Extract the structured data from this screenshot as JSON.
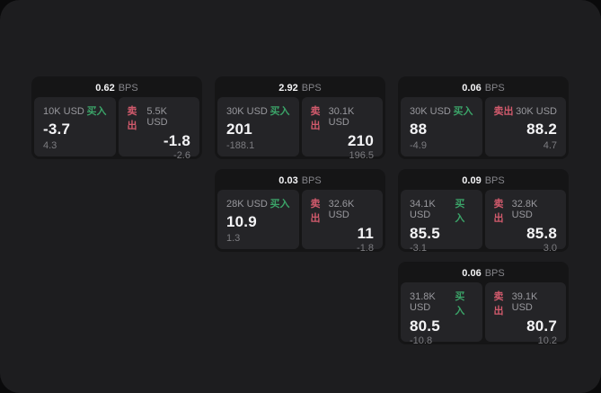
{
  "colors": {
    "page_bg": "#0a0a0b",
    "panel_bg": "#1d1d1f",
    "card_bg": "#151516",
    "tile_bg": "#242427",
    "value_white": "#f4f4f6",
    "label_gray": "#98989d",
    "delta_gray": "#7c7c80",
    "bps_gray": "#85858a",
    "buy_green": "#3ba368",
    "sell_red": "#d15a6c"
  },
  "labels": {
    "bps": "BPS",
    "buy": "买入",
    "sell": "卖出"
  },
  "cards": [
    {
      "bps": "0.62",
      "buy": {
        "amount": "10K USD",
        "value": "-3.7",
        "delta": "4.3"
      },
      "sell": {
        "amount": "5.5K USD",
        "value": "-1.8",
        "delta": "-2.6"
      }
    },
    {
      "bps": "2.92",
      "buy": {
        "amount": "30K USD",
        "value": "201",
        "delta": "-188.1"
      },
      "sell": {
        "amount": "30.1K USD",
        "value": "210",
        "delta": "196.5"
      }
    },
    {
      "bps": "0.06",
      "buy": {
        "amount": "30K USD",
        "value": "88",
        "delta": "-4.9"
      },
      "sell": {
        "amount": "30K USD",
        "value": "88.2",
        "delta": "4.7"
      }
    },
    {
      "bps": "0.03",
      "buy": {
        "amount": "28K USD",
        "value": "10.9",
        "delta": "1.3"
      },
      "sell": {
        "amount": "32.6K USD",
        "value": "11",
        "delta": "-1.8"
      }
    },
    {
      "bps": "0.09",
      "buy": {
        "amount": "34.1K USD",
        "value": "85.5",
        "delta": "-3.1"
      },
      "sell": {
        "amount": "32.8K USD",
        "value": "85.8",
        "delta": "3.0"
      }
    },
    {
      "bps": "0.06",
      "buy": {
        "amount": "31.8K USD",
        "value": "80.5",
        "delta": "-10.8"
      },
      "sell": {
        "amount": "39.1K USD",
        "value": "80.7",
        "delta": "10.2"
      }
    }
  ]
}
